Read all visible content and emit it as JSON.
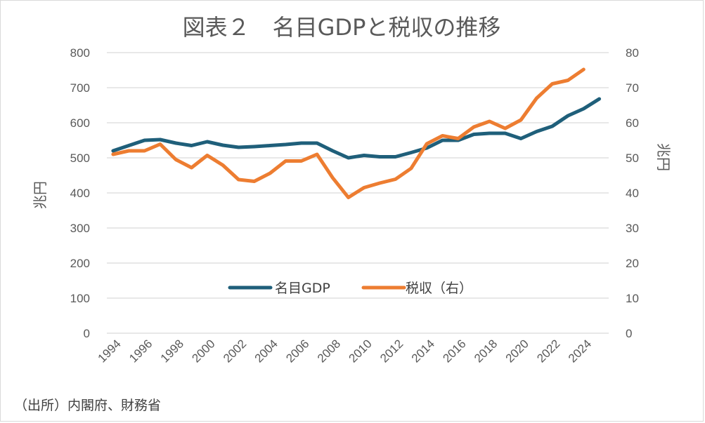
{
  "chart_data": {
    "type": "line",
    "title": "図表２　名目GDPと税収の推移",
    "ylabel_left": "兆円",
    "ylabel_right": "兆円",
    "source_note": "（出所）内閣府、財務省",
    "ylim_left": [
      0,
      800
    ],
    "ylim_right": [
      0,
      80
    ],
    "yticks_left": [
      "0",
      "100",
      "200",
      "300",
      "400",
      "500",
      "600",
      "700",
      "800"
    ],
    "yticks_right": [
      "0",
      "10",
      "20",
      "30",
      "40",
      "50",
      "60",
      "70",
      "80"
    ],
    "xticks": [
      "1994",
      "1996",
      "1998",
      "2000",
      "2002",
      "2004",
      "2006",
      "2008",
      "2010",
      "2012",
      "2014",
      "2016",
      "2018",
      "2020",
      "2022",
      "2024"
    ],
    "grid": true,
    "legend_position": "center",
    "series": [
      {
        "name": "名目GDP",
        "axis": "left",
        "color": "#1f5f7a",
        "x": [
          1994,
          1995,
          1996,
          1997,
          1998,
          1999,
          2000,
          2001,
          2002,
          2003,
          2004,
          2005,
          2006,
          2007,
          2008,
          2009,
          2010,
          2011,
          2012,
          2013,
          2014,
          2015,
          2016,
          2017,
          2018,
          2019,
          2020,
          2021,
          2022,
          2023,
          2024,
          2025
        ],
        "values": [
          520,
          535,
          550,
          552,
          542,
          535,
          546,
          536,
          530,
          532,
          535,
          538,
          542,
          542,
          520,
          500,
          507,
          503,
          503,
          515,
          528,
          550,
          550,
          567,
          570,
          570,
          555,
          575,
          590,
          620,
          640,
          668
        ]
      },
      {
        "name": "税収（右）",
        "axis": "right",
        "color": "#ed7d31",
        "x": [
          1994,
          1995,
          1996,
          1997,
          1998,
          1999,
          2000,
          2001,
          2002,
          2003,
          2004,
          2005,
          2006,
          2007,
          2008,
          2009,
          2010,
          2011,
          2012,
          2013,
          2014,
          2015,
          2016,
          2017,
          2018,
          2019,
          2020,
          2021,
          2022,
          2023,
          2024
        ],
        "values": [
          51,
          52,
          52,
          53.9,
          49.5,
          47.2,
          50.7,
          47.9,
          43.8,
          43.3,
          45.6,
          49.1,
          49.1,
          51,
          44.3,
          38.7,
          41.5,
          42.8,
          43.9,
          47,
          54,
          56.3,
          55.5,
          58.8,
          60.4,
          58.4,
          60.8,
          67,
          71.1,
          72.1,
          75.2
        ]
      }
    ]
  }
}
